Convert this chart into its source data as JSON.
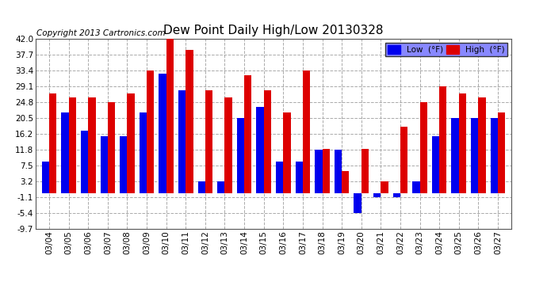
{
  "title": "Dew Point Daily High/Low 20130328",
  "copyright": "Copyright 2013 Cartronics.com",
  "dates": [
    "03/04",
    "03/05",
    "03/06",
    "03/07",
    "03/08",
    "03/09",
    "03/10",
    "03/11",
    "03/12",
    "03/13",
    "03/14",
    "03/15",
    "03/16",
    "03/17",
    "03/18",
    "03/19",
    "03/20",
    "03/21",
    "03/22",
    "03/23",
    "03/24",
    "03/25",
    "03/26",
    "03/27"
  ],
  "low_values": [
    8.5,
    22.0,
    17.0,
    15.5,
    15.5,
    22.0,
    32.5,
    28.0,
    3.2,
    3.2,
    20.5,
    23.5,
    8.5,
    8.5,
    11.8,
    11.8,
    -5.4,
    -1.1,
    -1.1,
    3.2,
    15.5,
    20.5,
    20.5,
    20.5
  ],
  "high_values": [
    27.0,
    26.0,
    26.0,
    24.8,
    27.0,
    33.4,
    42.0,
    39.0,
    28.0,
    26.0,
    32.0,
    28.0,
    22.0,
    33.4,
    12.0,
    6.0,
    12.0,
    3.2,
    18.0,
    24.8,
    29.1,
    27.0,
    26.0,
    22.0
  ],
  "low_color": "#0000EE",
  "high_color": "#DD0000",
  "bg_color": "#FFFFFF",
  "grid_color": "#AAAAAA",
  "yticks": [
    -9.7,
    -5.4,
    -1.1,
    3.2,
    7.5,
    11.8,
    16.2,
    20.5,
    24.8,
    29.1,
    33.4,
    37.7,
    42.0
  ],
  "ymin": -9.7,
  "ymax": 42.0,
  "bar_width": 0.38,
  "legend_bg": "#6666FF",
  "title_fontsize": 11,
  "tick_fontsize": 7.5,
  "copyright_fontsize": 7.5
}
